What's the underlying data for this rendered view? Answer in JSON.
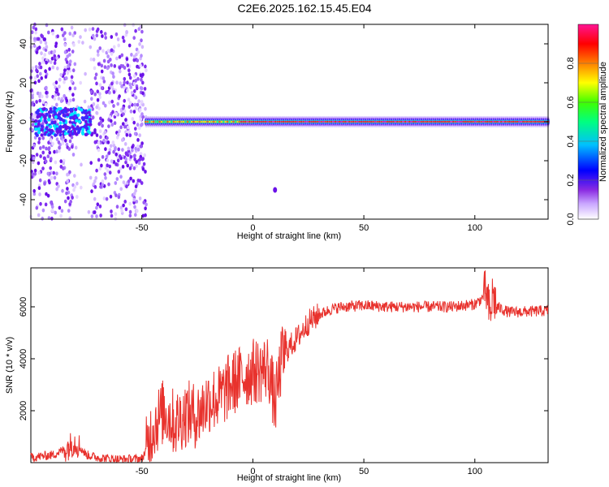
{
  "title": "C2E6.2025.162.15.45.E04",
  "chart_data": [
    {
      "type": "heatmap",
      "xlabel": "Height of straight line (km)",
      "ylabel": "Frequency (Hz)",
      "xlim": [
        -100,
        133
      ],
      "ylim": [
        -50,
        50
      ],
      "xticks": [
        -50,
        0,
        50,
        100
      ],
      "yticks": [
        -40,
        -20,
        0,
        20,
        40
      ],
      "colorbar": {
        "label": "Normalized spectral amplitude",
        "range": [
          0,
          1
        ],
        "ticks": [
          0.0,
          0.2,
          0.4,
          0.6,
          0.8
        ],
        "tick_labels": [
          "0.0",
          "0.2",
          "0.4",
          "0.6",
          "0.8"
        ],
        "colormap": [
          "#ffffff",
          "#8a2be2",
          "#0000ff",
          "#00ffff",
          "#00ff00",
          "#ffff00",
          "#ff0000",
          "#ff1493"
        ]
      },
      "description_points": {
        "noisy_region_x": [
          -100,
          -48
        ],
        "signal_band_center_hz": 0,
        "signal_band_halfwidth_hz": 4,
        "strong_core_x": [
          0,
          125
        ],
        "isolated_blob": {
          "x": 10,
          "y": -35
        }
      }
    },
    {
      "type": "line",
      "xlabel": "Height of straight line (km)",
      "ylabel": "SNR (10 * v/v)",
      "xlim": [
        -100,
        133
      ],
      "ylim": [
        0,
        7500
      ],
      "xticks": [
        -50,
        0,
        50,
        100
      ],
      "yticks": [
        2000,
        4000,
        6000
      ],
      "line_color": "#e8322d",
      "series": [
        {
          "x": [
            -100,
            -90,
            -85,
            -80,
            -75,
            -70,
            -60,
            -50,
            -48,
            -45,
            -40,
            -35,
            -30,
            -25,
            -20,
            -15,
            -10,
            -5,
            0,
            5,
            7,
            10,
            13,
            15,
            20,
            25,
            30,
            35,
            40,
            50,
            60,
            70,
            80,
            90,
            100,
            103,
            105,
            107,
            108,
            110,
            115,
            120,
            133
          ],
          "y": [
            200,
            300,
            500,
            800,
            300,
            200,
            120,
            150,
            500,
            1400,
            2000,
            1500,
            1900,
            1800,
            2400,
            2500,
            3000,
            3300,
            3500,
            3600,
            3700,
            2200,
            4000,
            4300,
            4800,
            5400,
            5700,
            5900,
            6000,
            6050,
            6000,
            6000,
            6000,
            6000,
            6100,
            6300,
            6600,
            5600,
            6500,
            6000,
            5800,
            5800,
            5850
          ]
        }
      ]
    }
  ]
}
